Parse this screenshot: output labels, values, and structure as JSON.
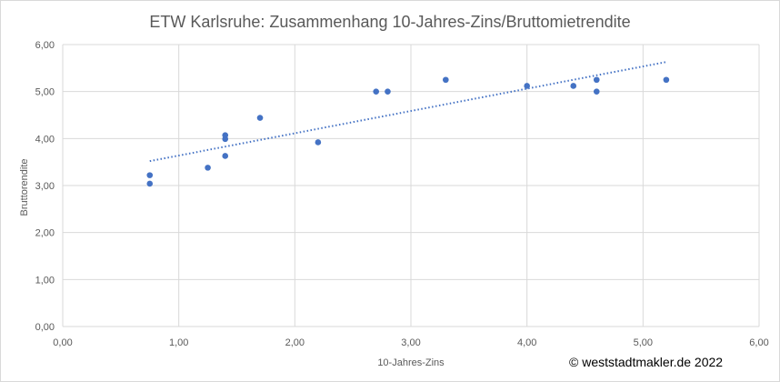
{
  "chart_data": {
    "type": "scatter",
    "title": "ETW Karlsruhe: Zusammenhang 10-Jahres-Zins/Bruttomietrendite",
    "xlabel": "10-Jahres-Zins",
    "ylabel": "Bruttorendite",
    "xlim": [
      0,
      6
    ],
    "ylim": [
      0,
      6
    ],
    "x_ticks": [
      "0,00",
      "1,00",
      "2,00",
      "3,00",
      "4,00",
      "5,00",
      "6,00"
    ],
    "y_ticks": [
      "0,00",
      "1,00",
      "2,00",
      "3,00",
      "4,00",
      "5,00",
      "6,00"
    ],
    "grid": true,
    "legend": "none",
    "points": [
      {
        "x": 0.75,
        "y": 3.22
      },
      {
        "x": 0.75,
        "y": 3.04
      },
      {
        "x": 1.25,
        "y": 3.38
      },
      {
        "x": 1.4,
        "y": 4.07
      },
      {
        "x": 1.4,
        "y": 3.99
      },
      {
        "x": 1.4,
        "y": 3.63
      },
      {
        "x": 1.7,
        "y": 4.44
      },
      {
        "x": 2.2,
        "y": 3.92
      },
      {
        "x": 2.7,
        "y": 5.0
      },
      {
        "x": 2.8,
        "y": 5.0
      },
      {
        "x": 3.3,
        "y": 5.25
      },
      {
        "x": 4.0,
        "y": 5.12
      },
      {
        "x": 4.4,
        "y": 5.12
      },
      {
        "x": 4.6,
        "y": 5.25
      },
      {
        "x": 4.6,
        "y": 5.0
      },
      {
        "x": 5.2,
        "y": 5.25
      }
    ],
    "trendline": {
      "style": "dotted",
      "x": [
        0.75,
        5.2
      ],
      "y": [
        3.52,
        5.63
      ]
    },
    "colors": {
      "points": "#4472c4",
      "grid": "#d9d9d9",
      "text": "#595959"
    },
    "annotation": "© weststadtmakler.de 2022"
  }
}
